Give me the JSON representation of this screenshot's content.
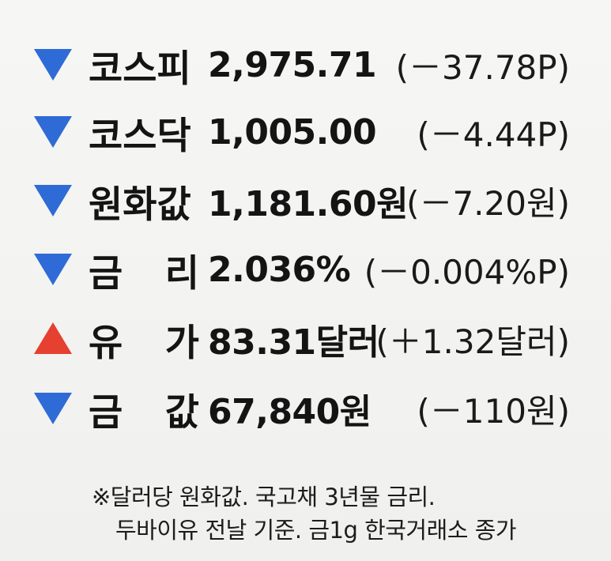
{
  "colors": {
    "down": "#2f6bd6",
    "up": "#e54030"
  },
  "rows": [
    {
      "icon": "down-triangle-icon",
      "dir": "down",
      "name_a": "코스피",
      "name_b": "",
      "value": "2,975.71",
      "change": "(－37.78P)"
    },
    {
      "icon": "down-triangle-icon",
      "dir": "down",
      "name_a": "코스닥",
      "name_b": "",
      "value": "1,005.00",
      "change": "(－4.44P)"
    },
    {
      "icon": "down-triangle-icon",
      "dir": "down",
      "name_a": "원화값",
      "name_b": "",
      "value": "1,181.60원",
      "change": "(－7.20원)"
    },
    {
      "icon": "down-triangle-icon",
      "dir": "down",
      "name_a": "금",
      "name_b": "리",
      "value": "2.036%",
      "change": "(－0.004%P)"
    },
    {
      "icon": "up-triangle-icon",
      "dir": "up",
      "name_a": "유",
      "name_b": "가",
      "value": "83.31달러",
      "change": "(＋1.32달러)"
    },
    {
      "icon": "down-triangle-icon",
      "dir": "down",
      "name_a": "금",
      "name_b": "값",
      "value": "67,840원",
      "change": "(－110원)"
    }
  ],
  "notes": {
    "line1": "※달러당 원화값. 국고채 3년물 금리.",
    "line2": "두바이유 전날 기준. 금1g 한국거래소 종가"
  }
}
